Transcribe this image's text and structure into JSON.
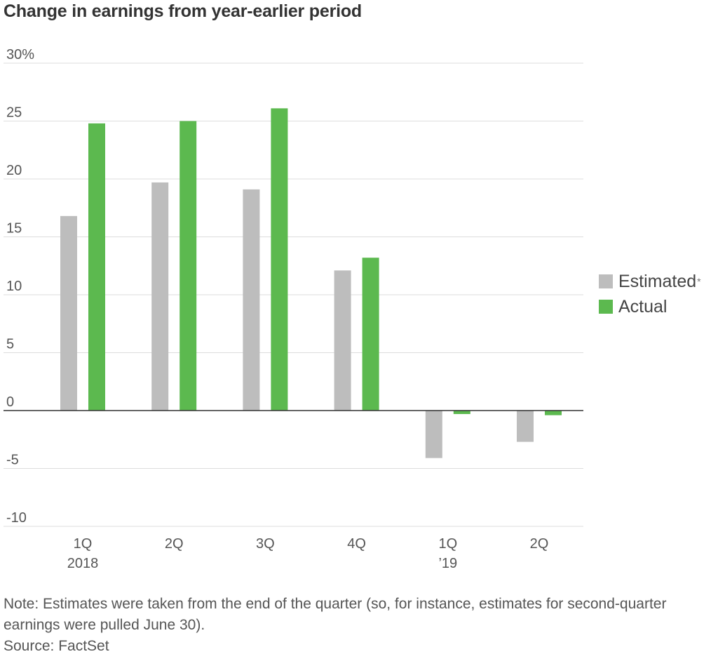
{
  "chart_data": {
    "type": "bar",
    "title": "Change in earnings from year-earlier period",
    "categories": [
      {
        "line1": "1Q",
        "line2": "2018"
      },
      {
        "line1": "2Q",
        "line2": ""
      },
      {
        "line1": "3Q",
        "line2": ""
      },
      {
        "line1": "4Q",
        "line2": ""
      },
      {
        "line1": "1Q",
        "line2": "’19"
      },
      {
        "line1": "2Q",
        "line2": ""
      }
    ],
    "series": [
      {
        "name": "Estimated",
        "name_suffix": "*",
        "color": "#bdbdbd",
        "values": [
          16.8,
          19.7,
          19.1,
          12.1,
          -4.1,
          -2.7
        ]
      },
      {
        "name": "Actual",
        "color": "#5cb94f",
        "values": [
          24.8,
          25.0,
          26.1,
          13.2,
          -0.3,
          -0.4
        ]
      }
    ],
    "ylim": [
      -10,
      30
    ],
    "yticks": [
      {
        "value": 30,
        "label": "30%"
      },
      {
        "value": 25,
        "label": "25"
      },
      {
        "value": 20,
        "label": "20"
      },
      {
        "value": 15,
        "label": "15"
      },
      {
        "value": 10,
        "label": "10"
      },
      {
        "value": 5,
        "label": "5"
      },
      {
        "value": 0,
        "label": "0"
      },
      {
        "value": -5,
        "label": "-5"
      },
      {
        "value": -10,
        "label": "-10"
      }
    ],
    "grid": true,
    "legend_position": "right"
  },
  "note": "Note: Estimates were taken from the end of the quarter (so, for instance, estimates for second-quarter earnings were pulled June 30).",
  "source": "Source: FactSet"
}
